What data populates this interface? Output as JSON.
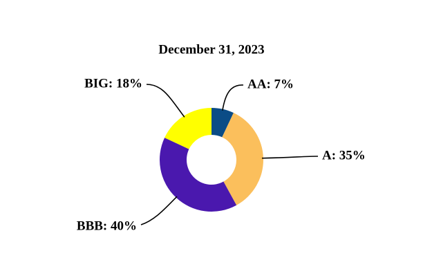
{
  "chart_data": {
    "type": "donut",
    "title": "December 31, 2023",
    "categories": [
      "AA",
      "A",
      "BBB",
      "BIG"
    ],
    "values": [
      7,
      35,
      40,
      18
    ],
    "value_labels": [
      "AA: 7%",
      "A: 35%",
      "BBB: 40%",
      "BIG: 18%"
    ],
    "colors": [
      "#0b4c86",
      "#fbbf5c",
      "#4a18ae",
      "#ffff00"
    ]
  }
}
